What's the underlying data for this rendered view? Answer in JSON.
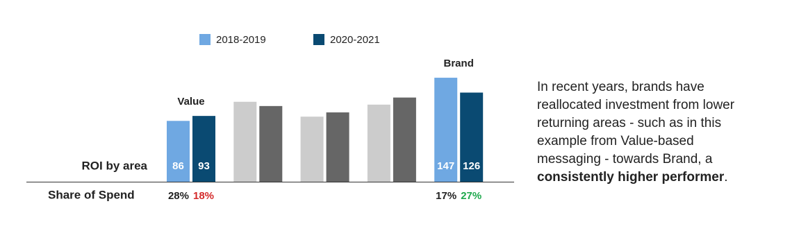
{
  "chart_data": {
    "type": "bar",
    "categories": [
      "Value",
      null,
      null,
      null,
      "Brand"
    ],
    "series": [
      {
        "name": "2018-2019",
        "color": "#6fa8e2",
        "colors": [
          "#6fa8e2",
          "#cccccc",
          "#cccccc",
          "#cccccc",
          "#6fa8e2"
        ],
        "values": [
          86,
          113,
          92,
          109,
          147
        ],
        "share": [
          28,
          null,
          null,
          null,
          17
        ],
        "share_labels": [
          "28%",
          null,
          null,
          null,
          "17%"
        ],
        "share_colors": [
          "#222222",
          null,
          null,
          null,
          "#222222"
        ]
      },
      {
        "name": "2020-2021",
        "color": "#0a4a72",
        "colors": [
          "#0a4a72",
          "#666666",
          "#666666",
          "#666666",
          "#0a4a72"
        ],
        "values": [
          93,
          107,
          98,
          119,
          126
        ],
        "share": [
          18,
          null,
          null,
          null,
          27
        ],
        "share_labels": [
          "18%",
          null,
          null,
          null,
          "27%"
        ],
        "share_colors": [
          "#d42a2a",
          null,
          null,
          null,
          "#1ea84c"
        ]
      }
    ],
    "value_label_indices": [
      0,
      4
    ],
    "row_label": "ROI by area",
    "share_title": "Share of Spend",
    "note": {
      "lines": [
        "In recent years, brands have",
        "reallocated investment from lower",
        "returning areas - such as in this",
        "example from Value-based",
        "messaging - towards Brand, a"
      ],
      "bold": "consistently higher performer",
      "end": "."
    }
  }
}
